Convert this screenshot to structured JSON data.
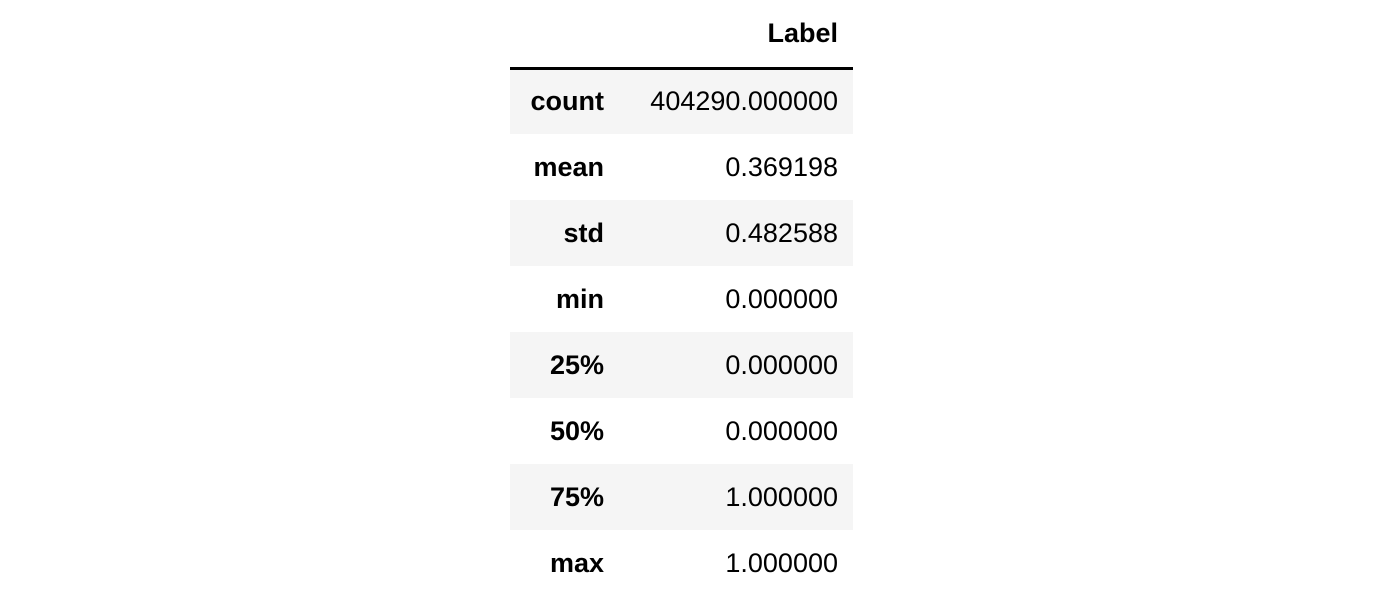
{
  "table": {
    "columns": [
      "",
      "Label"
    ],
    "rows": [
      {
        "index": "count",
        "value": "404290.000000"
      },
      {
        "index": "mean",
        "value": "0.369198"
      },
      {
        "index": "std",
        "value": "0.482588"
      },
      {
        "index": "min",
        "value": "0.000000"
      },
      {
        "index": "25%",
        "value": "0.000000"
      },
      {
        "index": "50%",
        "value": "0.000000"
      },
      {
        "index": "75%",
        "value": "1.000000"
      },
      {
        "index": "max",
        "value": "1.000000"
      }
    ]
  },
  "colors": {
    "stripe": "#f5f5f5",
    "background": "#ffffff",
    "text": "#000000"
  }
}
